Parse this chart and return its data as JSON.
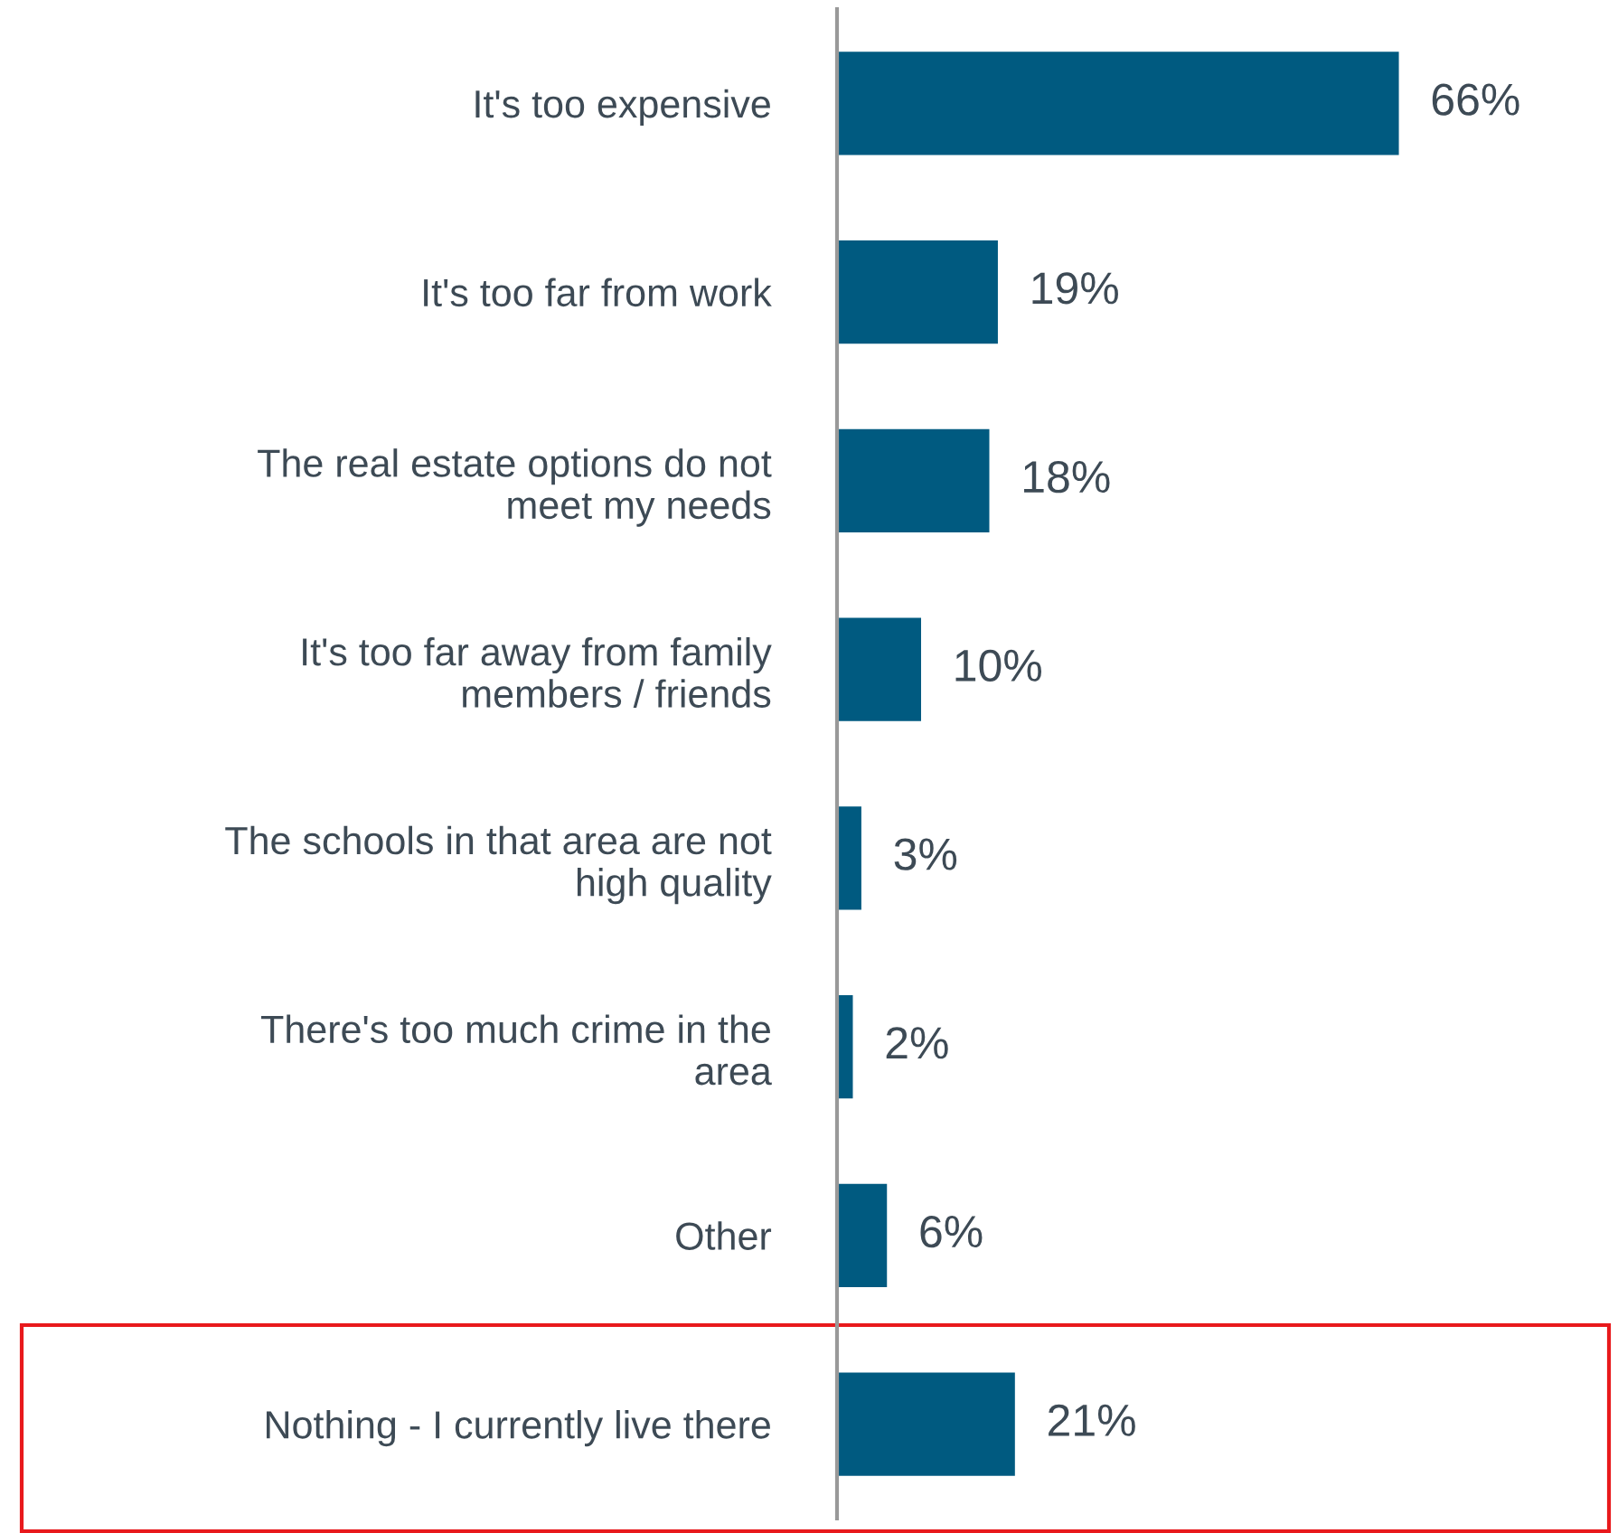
{
  "chart_data": {
    "type": "bar",
    "orientation": "horizontal",
    "categories": [
      "It's too expensive",
      "It's too far from work",
      "The real estate options do not\nmeet my needs",
      "It's too far away from family\nmembers / friends",
      "The schools in that area are not\nhigh quality",
      "There's too much crime in the\narea",
      "Other",
      "Nothing - I currently live there"
    ],
    "values": [
      66,
      19,
      18,
      10,
      3,
      2,
      6,
      21
    ],
    "color": "#005a80",
    "value_labels": [
      "66%",
      "19%",
      "18%",
      "10%",
      "3%",
      "2%",
      "6%",
      "21%"
    ]
  }
}
